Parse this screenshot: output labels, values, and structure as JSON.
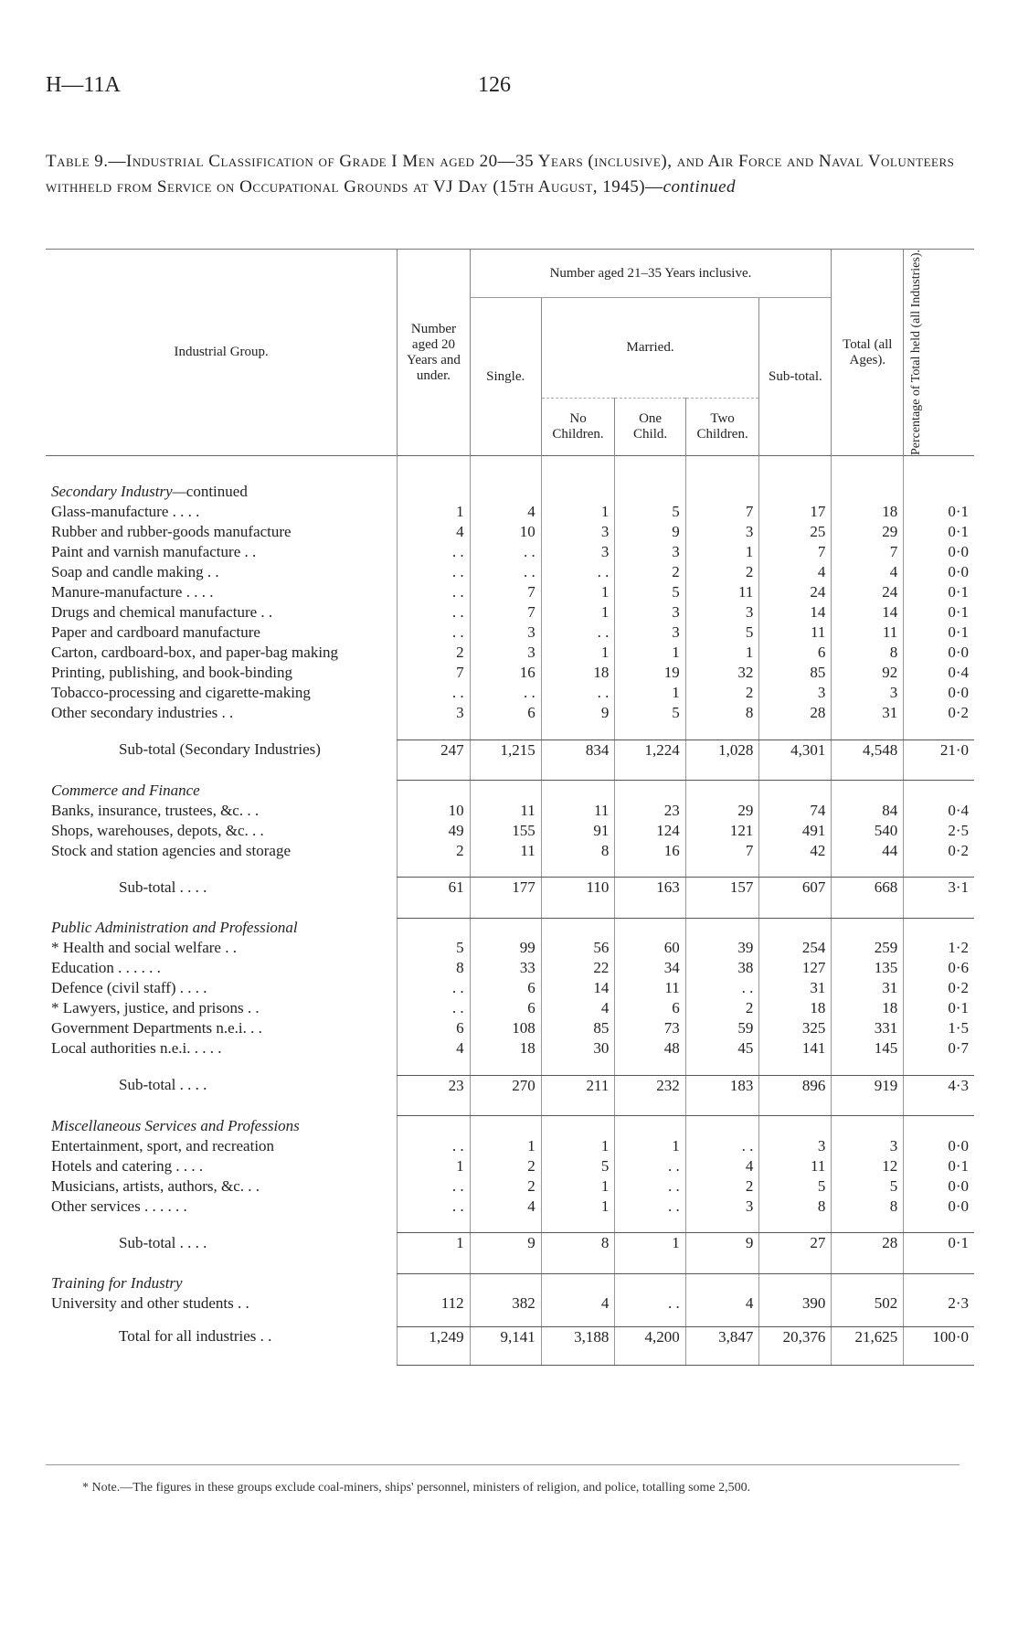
{
  "header": {
    "code": "H—11A",
    "page": "126"
  },
  "title": "Table 9.—Industrial Classification of Grade I Men aged 20—35 Years (inclusive), and Air Force and Naval Volunteers withheld from Service on Occupational Grounds at VJ Day (15th August, 1945)—",
  "title_suffix": "continued",
  "columns": {
    "group": "Industrial Group.",
    "under20": "Number aged 20 Years and under.",
    "aged2135": "Number aged 21–35 Years inclusive.",
    "single": "Single.",
    "married": "Married.",
    "no_children": "No Children.",
    "one_child": "One Child.",
    "two_children": "Two Children.",
    "subtotal": "Sub-total.",
    "total": "Total (all Ages).",
    "pct": "Percentage of Total held (all Industries)."
  },
  "rows": [
    {
      "type": "heading",
      "label": "Secondary Industry—",
      "label_suffix": "continued"
    },
    {
      "label": "Glass-manufacture   . .   . .",
      "v": [
        "1",
        "4",
        "1",
        "5",
        "7",
        "17",
        "18",
        "0·1"
      ]
    },
    {
      "label": "Rubber and rubber-goods manufacture",
      "v": [
        "4",
        "10",
        "3",
        "9",
        "3",
        "25",
        "29",
        "0·1"
      ]
    },
    {
      "label": "Paint and varnish manufacture . .",
      "v": [
        ". .",
        ". .",
        "3",
        "3",
        "1",
        "7",
        "7",
        "0·0"
      ]
    },
    {
      "label": "Soap and candle making   . .",
      "v": [
        ". .",
        ". .",
        ". .",
        "2",
        "2",
        "4",
        "4",
        "0·0"
      ]
    },
    {
      "label": "Manure-manufacture   . .   . .",
      "v": [
        ". .",
        "7",
        "1",
        "5",
        "11",
        "24",
        "24",
        "0·1"
      ]
    },
    {
      "label": "Drugs and chemical manufacture . .",
      "v": [
        ". .",
        "7",
        "1",
        "3",
        "3",
        "14",
        "14",
        "0·1"
      ]
    },
    {
      "label": "Paper and cardboard manufacture",
      "v": [
        ". .",
        "3",
        ". .",
        "3",
        "5",
        "11",
        "11",
        "0·1"
      ]
    },
    {
      "label": "Carton, cardboard-box, and paper-bag making",
      "v": [
        "2",
        "3",
        "1",
        "1",
        "1",
        "6",
        "8",
        "0·0"
      ]
    },
    {
      "label": "Printing, publishing, and book-binding",
      "v": [
        "7",
        "16",
        "18",
        "19",
        "32",
        "85",
        "92",
        "0·4"
      ]
    },
    {
      "label": "Tobacco-processing and cigarette-making",
      "v": [
        ". .",
        ". .",
        ". .",
        "1",
        "2",
        "3",
        "3",
        "0·0"
      ]
    },
    {
      "label": "Other secondary industries   . .",
      "v": [
        "3",
        "6",
        "9",
        "5",
        "8",
        "28",
        "31",
        "0·2"
      ]
    },
    {
      "type": "subtotal",
      "label": "Sub-total (Secondary Industries)",
      "v": [
        "247",
        "1,215",
        "834",
        "1,224",
        "1,028",
        "4,301",
        "4,548",
        "21·0"
      ]
    },
    {
      "type": "heading",
      "label": "Commerce and Finance"
    },
    {
      "label": "Banks, insurance, trustees, &c. . .",
      "v": [
        "10",
        "11",
        "11",
        "23",
        "29",
        "74",
        "84",
        "0·4"
      ]
    },
    {
      "label": "Shops, warehouses, depots, &c. . .",
      "v": [
        "49",
        "155",
        "91",
        "124",
        "121",
        "491",
        "540",
        "2·5"
      ]
    },
    {
      "label": "Stock and station agencies and storage",
      "v": [
        "2",
        "11",
        "8",
        "16",
        "7",
        "42",
        "44",
        "0·2"
      ]
    },
    {
      "type": "subtotal",
      "label": "Sub-total   . .   . .",
      "v": [
        "61",
        "177",
        "110",
        "163",
        "157",
        "607",
        "668",
        "3·1"
      ]
    },
    {
      "type": "heading",
      "label": "Public Administration and Professional"
    },
    {
      "label": "* Health and social welfare   . .",
      "v": [
        "5",
        "99",
        "56",
        "60",
        "39",
        "254",
        "259",
        "1·2"
      ]
    },
    {
      "label": "Education   . .   . .   . .",
      "v": [
        "8",
        "33",
        "22",
        "34",
        "38",
        "127",
        "135",
        "0·6"
      ]
    },
    {
      "label": "Defence (civil staff)   . .   . .",
      "v": [
        ". .",
        "6",
        "14",
        "11",
        ". .",
        "31",
        "31",
        "0·2"
      ]
    },
    {
      "label": "* Lawyers, justice, and prisons . .",
      "v": [
        ". .",
        "6",
        "4",
        "6",
        "2",
        "18",
        "18",
        "0·1"
      ]
    },
    {
      "label": "Government Departments n.e.i. . .",
      "v": [
        "6",
        "108",
        "85",
        "73",
        "59",
        "325",
        "331",
        "1·5"
      ]
    },
    {
      "label": "Local authorities n.e.i. . .   . .",
      "v": [
        "4",
        "18",
        "30",
        "48",
        "45",
        "141",
        "145",
        "0·7"
      ]
    },
    {
      "type": "subtotal",
      "label": "Sub-total   . .   . .",
      "v": [
        "23",
        "270",
        "211",
        "232",
        "183",
        "896",
        "919",
        "4·3"
      ]
    },
    {
      "type": "heading",
      "label": "Miscellaneous Services and Professions"
    },
    {
      "label": "Entertainment, sport, and recreation",
      "v": [
        ". .",
        "1",
        "1",
        "1",
        ". .",
        "3",
        "3",
        "0·0"
      ]
    },
    {
      "label": "Hotels and catering   . .   . .",
      "v": [
        "1",
        "2",
        "5",
        ". .",
        "4",
        "11",
        "12",
        "0·1"
      ]
    },
    {
      "label": "Musicians, artists, authors, &c. . .",
      "v": [
        ". .",
        "2",
        "1",
        ". .",
        "2",
        "5",
        "5",
        "0·0"
      ]
    },
    {
      "label": "Other services . .   . .   . .",
      "v": [
        ". .",
        "4",
        "1",
        ". .",
        "3",
        "8",
        "8",
        "0·0"
      ]
    },
    {
      "type": "subtotal",
      "label": "Sub-total   . .   . .",
      "v": [
        "1",
        "9",
        "8",
        "1",
        "9",
        "27",
        "28",
        "0·1"
      ]
    },
    {
      "type": "heading",
      "label": "Training for Industry"
    },
    {
      "label": "University and other students   . .",
      "v": [
        "112",
        "382",
        "4",
        ". .",
        "4",
        "390",
        "502",
        "2·3"
      ]
    },
    {
      "type": "subtotal",
      "label": "Total for all industries . .",
      "v": [
        "1,249",
        "9,141",
        "3,188",
        "4,200",
        "3,847",
        "20,376",
        "21,625",
        "100·0"
      ]
    }
  ],
  "note": "* Note.—The figures in these groups exclude coal-miners, ships' personnel, ministers of religion, and police, totalling some 2,500."
}
